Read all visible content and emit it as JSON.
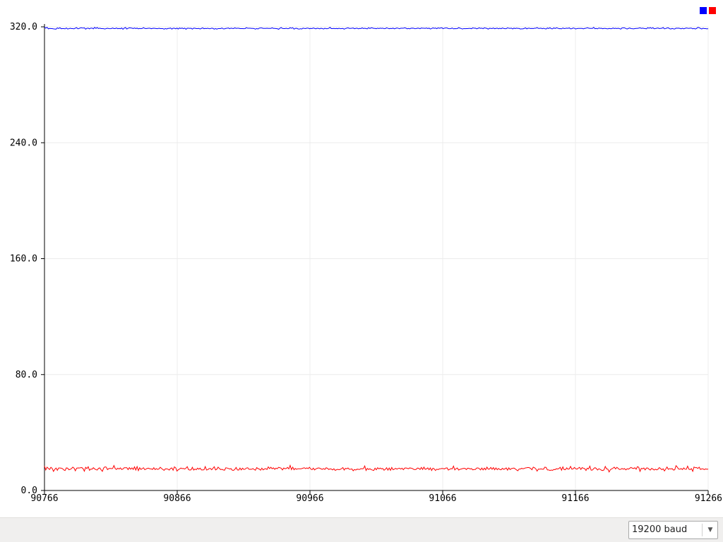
{
  "chart_data": {
    "type": "line",
    "title": "",
    "xlabel": "",
    "ylabel": "",
    "x_start": 90766,
    "x_end": 91266,
    "xlim": [
      90766,
      91266
    ],
    "ylim": [
      0,
      320
    ],
    "x_ticks": [
      90766,
      90866,
      90966,
      91066,
      91166,
      91266
    ],
    "y_ticks": [
      0,
      80,
      160,
      240,
      320
    ],
    "x_tick_labels": [
      "90766",
      "90866",
      "90966",
      "91066",
      "91166",
      "91266"
    ],
    "y_tick_labels": [
      "0.0",
      "80.0",
      "160.0",
      "240.0",
      "320.0"
    ],
    "grid": true,
    "legend_position": "top-right",
    "series": [
      {
        "color": "#0000ff",
        "mean": 319,
        "values": [
          319.8,
          319.1,
          319.7,
          318.6,
          318.9,
          318.8,
          318.8,
          318.6,
          318.5,
          318.4,
          319.3,
          318.8,
          319.4,
          318.7,
          318.8,
          318.8,
          318.6,
          319.2,
          318.5,
          318.7,
          319,
          318.8,
          318.8,
          318.6,
          319.1,
          319.4,
          318.6,
          318.9,
          319.3,
          319.3,
          319.1,
          319.3,
          318.4,
          319,
          319.1,
          318.6,
          319.1,
          319.1,
          318.6,
          319.6,
          318.9,
          319.5,
          318.8,
          319.1,
          318.8,
          318.8,
          318.7,
          318.5,
          318.8,
          319,
          318.8,
          318.7,
          318.8,
          319.2,
          318.8,
          318.8,
          319.2,
          318.7,
          318.9,
          318.7,
          319.2,
          318.3,
          319.1,
          319.5,
          318.5,
          319,
          319.3,
          319.2,
          319.1,
          318.8,
          319.2,
          318.8,
          319.1,
          318.6,
          318.9,
          318.7,
          318.9,
          319.4,
          318.9,
          318.8,
          318.9,
          319,
          319,
          318.7,
          318.9,
          319,
          318.9,
          318.8,
          318.7,
          319,
          318.8,
          318.8,
          318.8,
          318.4,
          318.8,
          318.5,
          318.9,
          318.9,
          319.2,
          318.4,
          319,
          319,
          318.6,
          319.1,
          318.5,
          319.2,
          318.8,
          319.2,
          318.7,
          319.1,
          318.3,
          319,
          319,
          318.9,
          319,
          318.4,
          319.1,
          319,
          318.8,
          318.8,
          318.9,
          318.5,
          318.9,
          319.3,
          318.7,
          318.9,
          318.8,
          319,
          318.7,
          318.7,
          319.1,
          318.9,
          318.4,
          318.8,
          318.4,
          318.8,
          318.8,
          318.8,
          319.2,
          318.6,
          318.6,
          318.9,
          319,
          319.2,
          318.7,
          319.1,
          318.9,
          318.8,
          319.3,
          318.9,
          319,
          319,
          318.8,
          318.8,
          318.8,
          318.7,
          318.8,
          319.4,
          319,
          319,
          319,
          318.9,
          318.9,
          318.8,
          318.4,
          318.8,
          318.5,
          319.1,
          319.2,
          319.2,
          318.9,
          318.9,
          318.9,
          319,
          318.9,
          318.9,
          318.9,
          319.3,
          318.9,
          318.9,
          318.8,
          318.7,
          318.3,
          319,
          319.5,
          318.9,
          318.8,
          318.8,
          319,
          318.7,
          318.8,
          319.4,
          319,
          319.4,
          318.4,
          318.9,
          319,
          318.6,
          318.4,
          318.7,
          318.5,
          319.1,
          318.9,
          318.8,
          319.1,
          319.1,
          318.7,
          318.9,
          318.8,
          319.2,
          318.9,
          318.6,
          319,
          318.9,
          318.6,
          319,
          318.8,
          318.5,
          319,
          318.7,
          318.7,
          319,
          319.6,
          318.8,
          318.8,
          318.9,
          318.7,
          318.9,
          318.7,
          319,
          318.7,
          318.8,
          318.9,
          318.4,
          318.8,
          319.1,
          319.3,
          318.9,
          318.9,
          319,
          319.2,
          318.7,
          318.9,
          319.1,
          318.6,
          318.9,
          318.8,
          319.3,
          318.8,
          319,
          318.8,
          318.6,
          319.4,
          318.8,
          319.3,
          319.2,
          318.9,
          318.9,
          318.7,
          319.1,
          318.8,
          319.1,
          318.9,
          319.1,
          318.7,
          318.8,
          319.3,
          319,
          318.7,
          318.9,
          318.8,
          319.1,
          318.6,
          318.9,
          319.2,
          319,
          318.7,
          319,
          319,
          319,
          319.3,
          319.1,
          318.6,
          318.9,
          318.6,
          319,
          319.1,
          319,
          318.7,
          318.8,
          319.1,
          319,
          318.7,
          319.2,
          319,
          319,
          318.9,
          319.2,
          318.8,
          319.1,
          318.5,
          318.8,
          319.3,
          318.9,
          319.2,
          318.7,
          319.3,
          319,
          319.2,
          319.3,
          318.7,
          319.1,
          319.2,
          319.2,
          318.8,
          318.7,
          318.8,
          319.2,
          318.6,
          318.8,
          318.7,
          318.8,
          319.4,
          319.1,
          318.8,
          318.5,
          318.8,
          318.7,
          318.8,
          318.8,
          318.9,
          318.9,
          318.7,
          319.3,
          319,
          319.1,
          318.6,
          318.9,
          319.3,
          318.9,
          319.1,
          318.7,
          319.3,
          319.1,
          318.9,
          318.4,
          319,
          318.9,
          318.8,
          319.2,
          318.7,
          318.9,
          319.1,
          318.6,
          319,
          318.7,
          319.2,
          318.9,
          318.7,
          318.7,
          319.3,
          319,
          318.9,
          319.1,
          318.5,
          319.1,
          318.8,
          319.1,
          318.9,
          318.9,
          318.5,
          318.6,
          318.6,
          318.9,
          319.3,
          318.6,
          319,
          319,
          318.8,
          318.9,
          318.8,
          319,
          319,
          319.5,
          318.9,
          318.9,
          319.1,
          318.7,
          319,
          318.7,
          318.5,
          319.2,
          318.8,
          319.4,
          318.7,
          318.6,
          319.3,
          318.8,
          319.3,
          319.1,
          318.7,
          318.8,
          318.6,
          319.2,
          318.8,
          318.9,
          319.1,
          318.9,
          319.3,
          318.6,
          318.7,
          319.2,
          319,
          318.5,
          318.8,
          318.9,
          318.9,
          318.9,
          318.9,
          318.6,
          318.9,
          319,
          319.4,
          319.1,
          318.9,
          318.9,
          318.9,
          319.6,
          318.7,
          318.9,
          318.6,
          319.2,
          318.9,
          319,
          318.7,
          318.9,
          318.9,
          318.7,
          318.6,
          318.9,
          318.7,
          318.7,
          319.2,
          318.8,
          319,
          318.8,
          319,
          318.8,
          318.4,
          319.2,
          319.3,
          319.3,
          318.8,
          318.5,
          318.9,
          319.2,
          318.8,
          318.7,
          318.6,
          318.8,
          318.9,
          318.9,
          319.1,
          319.3,
          318.9,
          319.1,
          318.9,
          318.8,
          318.6,
          319.4,
          319,
          319.5,
          318.9,
          319.4,
          318.7,
          318.8,
          319,
          319.2,
          318.8,
          318.9,
          319,
          319.5,
          318.6,
          318.8,
          319.2,
          319.3,
          318.7,
          318.5,
          318.9,
          318.6,
          318.5,
          319.1,
          319,
          319.1,
          318.9,
          318.6,
          319,
          318.6,
          318.9,
          319.2,
          319,
          318.9,
          319.1,
          319.1,
          318.6,
          318.9,
          318.5,
          318.9,
          319.6,
          319.4,
          318.9,
          318.5,
          319,
          318.8,
          318.8,
          318.6,
          318.7
        ]
      },
      {
        "color": "#ff0000",
        "mean": 15,
        "values": [
          16.9,
          14.2,
          16.1,
          15.2,
          14.5,
          16,
          15.2,
          13.2,
          14.6,
          15.5,
          13.9,
          15.5,
          15.5,
          15.4,
          15.1,
          14.2,
          13.8,
          15.6,
          15.4,
          14.3,
          14.6,
          15.1,
          16.1,
          15.4,
          13.6,
          15.4,
          15.6,
          15.5,
          15.7,
          15.8,
          15.1,
          13.3,
          16,
          15.1,
          16.4,
          13.9,
          14.8,
          14.7,
          15.7,
          14.9,
          14.4,
          14.1,
          15.3,
          15.6,
          14.3,
          13.2,
          15.5,
          16.3,
          16.1,
          14.4,
          15.1,
          15.3,
          15.1,
          15.2,
          17.2,
          15.1,
          14.5,
          15.4,
          14.8,
          15.6,
          14.5,
          14.8,
          15.7,
          15.7,
          15.7,
          14.4,
          15.8,
          14.7,
          15.6,
          14.5,
          16.3,
          14.1,
          16.5,
          13.7,
          15.7,
          14.5,
          15.1,
          15.7,
          14.3,
          14.8,
          15.3,
          15.4,
          14.9,
          14.9,
          14.5,
          15.7,
          14.4,
          15.1,
          14.5,
          14.9,
          16,
          15.2,
          14.5,
          13.9,
          14.9,
          14.9,
          14.7,
          14.1,
          15.2,
          15.6,
          14,
          16.3,
          15.7,
          13.4,
          14.3,
          14.8,
          15.5,
          15.1,
          15.2,
          14.8,
          15.4,
          16.4,
          14.4,
          14.1,
          14.3,
          16,
          14.1,
          14.8,
          14.3,
          15.4,
          14.7,
          15.4,
          14.2,
          14.2,
          14.3,
          16.5,
          14.1,
          14.4,
          15.1,
          15.2,
          14.3,
          15.3,
          16.4,
          14.2,
          14.7,
          16.1,
          15.2,
          14.4,
          14.6,
          14.2,
          14,
          15.7,
          15.5,
          15.2,
          14.8,
          15.1,
          14,
          13.9,
          14.6,
          15.9,
          14.2,
          14.1,
          15.5,
          14.2,
          15.4,
          14.5,
          14.7,
          15.5,
          15.7,
          14.6,
          14.7,
          14.6,
          15.1,
          14.5,
          14,
          15.8,
          15.1,
          14.8,
          14,
          15.4,
          14.2,
          14.8,
          15.1,
          14.5,
          16.3,
          15.1,
          16,
          15,
          15.6,
          14.6,
          15.4,
          15,
          16,
          15.7,
          15.4,
          14.2,
          15.5,
          15,
          15.2,
          15.9,
          14.9,
          17.3,
          14.4,
          16.1,
          14.3,
          15.2,
          14.6,
          15,
          15,
          14.9,
          15.1,
          15.4,
          15.7,
          15.1,
          15.6,
          15.1,
          16,
          14.9,
          14.3,
          15.4,
          14.2,
          14.9,
          15.3,
          15.6,
          15.4,
          14.9,
          14.6,
          15.1,
          14.5,
          15.7,
          15.3,
          14.5,
          14.9,
          14.8,
          14.2,
          15,
          13.9,
          14.3,
          14.6,
          14.3,
          14.6,
          15.1,
          15.8,
          14.1,
          15.3,
          15,
          15.5,
          14.6,
          14.7,
          14.9,
          13.6,
          14.5,
          14.1,
          14.7,
          14.6,
          14.5,
          15.1,
          14.9,
          15.1,
          16.9,
          13.8,
          15.2,
          14.5,
          15,
          14.4,
          14.1,
          13.8,
          15.4,
          14.3,
          15.7,
          14.9,
          15.5,
          14.9,
          15.2,
          14,
          14.6,
          15.7,
          14,
          15.5,
          13.9,
          15.9,
          14.3,
          14.7,
          15.3,
          14.7,
          15.2,
          15.4,
          14.8,
          15.4,
          14.3,
          15.4,
          15.6,
          15.3,
          15,
          15.6,
          15.4,
          15.2,
          14.6,
          14.4,
          14.6,
          15.5,
          15.3,
          14.5,
          15.9,
          14.5,
          16.1,
          14.6,
          14.9,
          15.6,
          14.3,
          15.6,
          13.8,
          15.4,
          14.9,
          13.8,
          14.7,
          14.4,
          14.9,
          15,
          15.2,
          15.1,
          14.9,
          15.5,
          15.6,
          14.1,
          14.6,
          15.1,
          14.9,
          16.8,
          14.2,
          15.1,
          15.5,
          14.1,
          14.6,
          14.8,
          15.1,
          15.3,
          15.2,
          14.4,
          15.4,
          15.3,
          14.8,
          15.1,
          14.2,
          14.5,
          14.5,
          15.5,
          15.6,
          15.1,
          14.2,
          15.5,
          14.2,
          15.4,
          14.3,
          16.1,
          14.7,
          14.8,
          15.9,
          14.6,
          15.8,
          14.3,
          15.6,
          14.3,
          15.2,
          14.5,
          14.3,
          15.3,
          14.6,
          14.9,
          15.6,
          14,
          15.6,
          14.4,
          15.1,
          15.3,
          15.5,
          14.9,
          14.2,
          13.6,
          14.8,
          14.8,
          15.3,
          15,
          15.2,
          15.6,
          15.7,
          15.9,
          15.7,
          15.2,
          14.3,
          16.1,
          15.7,
          14.9,
          13.4,
          14.8,
          14.7,
          14.9,
          14.7,
          14.7,
          16.1,
          15.9,
          14.2,
          14.2,
          13.8,
          14.1,
          13.9,
          14.5,
          14.4,
          15,
          14.8,
          15.2,
          16,
          14,
          16.3,
          14.4,
          14.3,
          15.6,
          14.7,
          14.9,
          16.6,
          14.7,
          14.9,
          15.9,
          15,
          14.7,
          15.4,
          16,
          14.5,
          15.8,
          15.3,
          15.1,
          13.8,
          15.4,
          14.9,
          16.8,
          14,
          14.1,
          15.1,
          15.8,
          15.2,
          14.1,
          15,
          14.6,
          14,
          13.8,
          14.2,
          16.6,
          14.9,
          14.7,
          12.8,
          14.4,
          14.9,
          15.4,
          16.1,
          14.9,
          16,
          15.3,
          14.5,
          14.6,
          15.2,
          14.7,
          15.1,
          14.2,
          15,
          14.7,
          15.3,
          15.9,
          15.4,
          15.2,
          15.7,
          14.7,
          16.4,
          16,
          13.2,
          15.3,
          15,
          15.5,
          14.2,
          15.5,
          15.5,
          14.7,
          14.1,
          15.2,
          14.8,
          14.1,
          14.7,
          14.2,
          14.7,
          15.8,
          15.1,
          14.3,
          15,
          13.5,
          14.8,
          16.2,
          14.6,
          15.1,
          14.8,
          15.1,
          14.1,
          14.3,
          17.1,
          16.1,
          14.8,
          14.7,
          15.1,
          14.4,
          15.6,
          14.7,
          14.6,
          16.8,
          14.7,
          14.4,
          15.1,
          13.2,
          16.2,
          15.7,
          15.8,
          15.2,
          16.1,
          14.5,
          14.9,
          14.9,
          14.4,
          14.9,
          14.6,
          14.8
        ]
      }
    ]
  },
  "footer": {
    "baud_rate": "19200 baud",
    "baud_options": [
      "19200 baud"
    ],
    "background": "#f0efee"
  }
}
